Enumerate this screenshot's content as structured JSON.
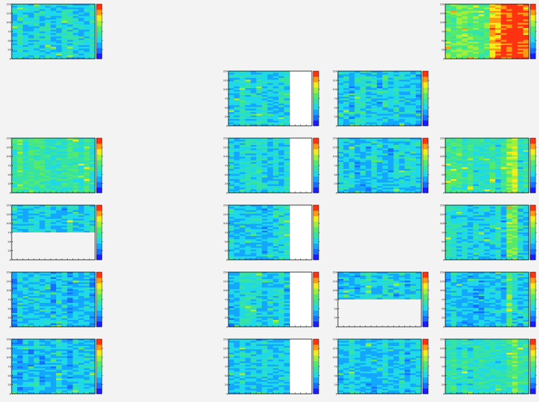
{
  "chart_data": {
    "type": "heatmap",
    "layout": "grid",
    "grid_rows": 6,
    "grid_cols": 4,
    "y_tick_labels": [
      "0",
      "25",
      "50",
      "75",
      "100",
      "125",
      "150"
    ],
    "color_map": [
      "#1c1cff",
      "#1570ff",
      "#13a7ff",
      "#1fd9e6",
      "#35e3a7",
      "#56ea6c",
      "#9ef03d",
      "#f2ee1a",
      "#ff9a11",
      "#ff3311"
    ],
    "empty_color": "#f3f3f3",
    "panels": [
      {
        "row": 0,
        "col": 0,
        "level": 0.34,
        "columns": 15,
        "rows": 32,
        "empty_region": null,
        "hot_columns": []
      },
      {
        "row": 0,
        "col": 3,
        "level": 0.58,
        "columns": 15,
        "rows": 32,
        "empty_region": null,
        "hot_columns": [
          {
            "from": 8,
            "to": 8,
            "level": 0.8
          },
          {
            "from": 9,
            "to": 9,
            "level": 0.88
          },
          {
            "from": 10,
            "to": 14,
            "level": 0.98
          }
        ]
      },
      {
        "row": 1,
        "col": 1,
        "level": 0.34,
        "columns": 11,
        "rows": 32,
        "empty_region": "right",
        "hot_columns": []
      },
      {
        "row": 1,
        "col": 2,
        "level": 0.3,
        "columns": 15,
        "rows": 32,
        "empty_region": null,
        "hot_columns": []
      },
      {
        "row": 2,
        "col": 0,
        "level": 0.45,
        "columns": 15,
        "rows": 32,
        "empty_region": null,
        "hot_columns": []
      },
      {
        "row": 2,
        "col": 1,
        "level": 0.32,
        "columns": 11,
        "rows": 32,
        "empty_region": "right",
        "hot_columns": []
      },
      {
        "row": 2,
        "col": 2,
        "level": 0.3,
        "columns": 15,
        "rows": 32,
        "empty_region": null,
        "hot_columns": []
      },
      {
        "row": 2,
        "col": 3,
        "level": 0.42,
        "columns": 15,
        "rows": 32,
        "empty_region": null,
        "hot_columns": [
          {
            "from": 11,
            "to": 11,
            "level": 0.62
          },
          {
            "from": 12,
            "to": 12,
            "level": 0.7
          }
        ]
      },
      {
        "row": 3,
        "col": 0,
        "level": 0.32,
        "columns": 15,
        "rows": 32,
        "empty_region": "bottom",
        "hot_columns": []
      },
      {
        "row": 3,
        "col": 1,
        "level": 0.3,
        "columns": 11,
        "rows": 32,
        "empty_region": "right",
        "hot_columns": []
      },
      {
        "row": 3,
        "col": 3,
        "level": 0.33,
        "columns": 15,
        "rows": 32,
        "empty_region": null,
        "hot_columns": [
          {
            "from": 11,
            "to": 12,
            "level": 0.55
          }
        ]
      },
      {
        "row": 4,
        "col": 0,
        "level": 0.26,
        "columns": 15,
        "rows": 32,
        "empty_region": null,
        "hot_columns": []
      },
      {
        "row": 4,
        "col": 1,
        "level": 0.32,
        "columns": 11,
        "rows": 32,
        "empty_region": "right",
        "hot_columns": []
      },
      {
        "row": 4,
        "col": 2,
        "level": 0.31,
        "columns": 15,
        "rows": 32,
        "empty_region": "bottom",
        "hot_columns": []
      },
      {
        "row": 4,
        "col": 3,
        "level": 0.3,
        "columns": 15,
        "rows": 32,
        "empty_region": null,
        "hot_columns": [
          {
            "from": 11,
            "to": 11,
            "level": 0.5
          }
        ]
      },
      {
        "row": 5,
        "col": 0,
        "level": 0.28,
        "columns": 15,
        "rows": 32,
        "empty_region": null,
        "hot_columns": []
      },
      {
        "row": 5,
        "col": 1,
        "level": 0.3,
        "columns": 11,
        "rows": 32,
        "empty_region": "right",
        "hot_columns": []
      },
      {
        "row": 5,
        "col": 2,
        "level": 0.28,
        "columns": 15,
        "rows": 32,
        "empty_region": null,
        "hot_columns": []
      },
      {
        "row": 5,
        "col": 3,
        "level": 0.4,
        "columns": 15,
        "rows": 32,
        "empty_region": null,
        "hot_columns": [
          {
            "from": 12,
            "to": 14,
            "level": 0.5
          }
        ]
      }
    ]
  }
}
